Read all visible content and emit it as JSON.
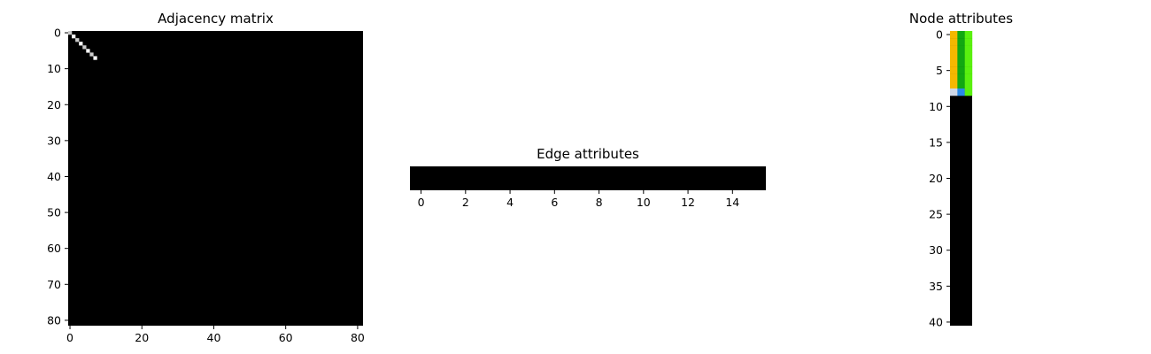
{
  "chart_data": [
    {
      "type": "heatmap",
      "title": "Adjacency matrix",
      "rows": 82,
      "cols": 82,
      "xticks": [
        0,
        20,
        40,
        60,
        80
      ],
      "yticks": [
        0,
        10,
        20,
        30,
        40,
        50,
        60,
        70,
        80
      ],
      "background_value": 0,
      "background_color": "#000000",
      "nonzero_cells": [
        {
          "row": 0,
          "col": 0,
          "value": 0.8
        },
        {
          "row": 1,
          "col": 1,
          "value": 1.0
        },
        {
          "row": 2,
          "col": 2,
          "value": 0.8
        },
        {
          "row": 3,
          "col": 3,
          "value": 1.0
        },
        {
          "row": 4,
          "col": 4,
          "value": 0.8
        },
        {
          "row": 5,
          "col": 5,
          "value": 1.0
        },
        {
          "row": 6,
          "col": 6,
          "value": 0.8
        },
        {
          "row": 7,
          "col": 7,
          "value": 1.0
        }
      ]
    },
    {
      "type": "heatmap",
      "title": "Edge attributes",
      "rows": 1,
      "cols": 16,
      "xticks": [
        0,
        2,
        4,
        6,
        8,
        10,
        12,
        14
      ],
      "yticks": [],
      "background_color": "#000000"
    },
    {
      "type": "heatmap",
      "title": "Node attributes",
      "rows": 41,
      "cols": 3,
      "xticks": [],
      "yticks": [
        0,
        5,
        10,
        15,
        20,
        25,
        30,
        35,
        40
      ],
      "background_color": "#000000",
      "colored_rows": 9,
      "cell_colors": [
        [
          "#f5b800",
          "#12a812",
          "#5af00f"
        ],
        [
          "#f5b800",
          "#12a812",
          "#5af00f"
        ],
        [
          "#f5b800",
          "#12a812",
          "#5af00f"
        ],
        [
          "#f5b800",
          "#12a812",
          "#5af00f"
        ],
        [
          "#f5b800",
          "#12a812",
          "#5af00f"
        ],
        [
          "#f5b800",
          "#12a812",
          "#5af00f"
        ],
        [
          "#f5b800",
          "#12a812",
          "#5af00f"
        ],
        [
          "#f5b800",
          "#12a812",
          "#5af00f"
        ],
        [
          "#cfd8e8",
          "#2a8ae8",
          "#5af00f"
        ]
      ]
    }
  ]
}
